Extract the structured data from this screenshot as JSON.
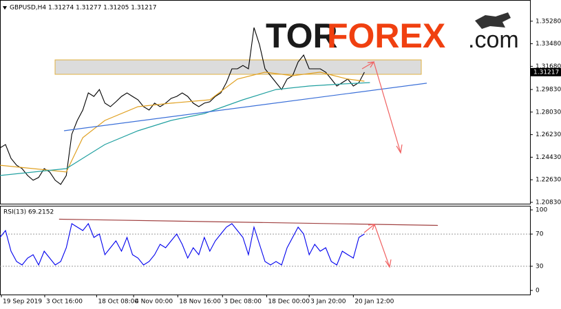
{
  "logo": {
    "part1": "TOR",
    "part2": "FOREX",
    "part3": ".com"
  },
  "chart_data": [
    {
      "type": "line",
      "title": "GBPUSD,H4  1.31274 1.31277 1.31205 1.31217",
      "xlim": [
        0,
        96
      ],
      "ylim": [
        1.2072,
        1.3686
      ],
      "yticks": [
        {
          "value": 1.3528,
          "label": "1.35280"
        },
        {
          "value": 1.3348,
          "label": "1.33480"
        },
        {
          "value": 1.3168,
          "label": "1.31680"
        },
        {
          "value": 1.2983,
          "label": "1.29830"
        },
        {
          "value": 1.2803,
          "label": "1.28030"
        },
        {
          "value": 1.2623,
          "label": "1.26230"
        },
        {
          "value": 1.2443,
          "label": "1.24430"
        },
        {
          "value": 1.2263,
          "label": "1.22630"
        },
        {
          "value": 1.2083,
          "label": "1.20830"
        }
      ],
      "last_value": 1.31217,
      "series": [
        {
          "color": "#000000",
          "x": [
            0,
            1,
            2,
            3,
            4,
            5,
            6,
            7,
            8,
            9,
            10,
            11,
            12,
            13,
            14,
            15,
            16,
            17,
            18,
            19,
            20,
            21,
            22,
            23,
            24,
            25,
            26,
            27,
            28,
            29,
            30,
            31,
            32,
            33,
            34,
            35,
            36,
            37,
            38,
            39,
            40,
            41,
            42,
            43,
            44,
            45,
            46,
            47,
            48,
            49,
            50,
            51,
            52,
            53,
            54,
            55,
            56,
            57,
            58,
            59,
            60,
            61,
            62,
            63,
            64,
            65,
            66
          ],
          "values": [
            1.2517,
            1.2544,
            1.2434,
            1.2379,
            1.2352,
            1.2297,
            1.2259,
            1.2281,
            1.2352,
            1.2325,
            1.2259,
            1.2226,
            1.2297,
            1.2626,
            1.2736,
            1.2819,
            1.2956,
            1.2928,
            1.2983,
            1.2874,
            1.2846,
            1.2885,
            1.2928,
            1.2956,
            1.2928,
            1.2901,
            1.2846,
            1.2819,
            1.2874,
            1.2846,
            1.2874,
            1.2912,
            1.2928,
            1.2956,
            1.2928,
            1.2874,
            1.2846,
            1.2874,
            1.2885,
            1.2928,
            1.2956,
            1.3038,
            1.3148,
            1.3148,
            1.3175,
            1.3148,
            1.3477,
            1.334,
            1.3148,
            1.3093,
            1.3038,
            1.2983,
            1.3066,
            1.3093,
            1.3203,
            1.3258,
            1.3148,
            1.3148,
            1.3148,
            1.3121,
            1.3066,
            1.3011,
            1.3038,
            1.3066,
            1.3011,
            1.3038,
            1.3121
          ]
        },
        {
          "color": "#e0a020",
          "x": [
            0,
            12,
            15,
            19,
            25,
            31,
            38,
            43,
            48,
            53,
            58,
            63,
            66
          ],
          "values": [
            1.2379,
            1.2325,
            1.2599,
            1.2736,
            1.2846,
            1.2874,
            1.2901,
            1.3066,
            1.3121,
            1.3093,
            1.3121,
            1.3066,
            1.3049
          ]
        },
        {
          "color": "#20a0a0",
          "x": [
            0,
            12,
            19,
            25,
            31,
            37,
            44,
            50,
            56,
            62,
            67
          ],
          "values": [
            1.2297,
            1.2352,
            1.2544,
            1.2654,
            1.2736,
            1.2791,
            1.2901,
            1.2983,
            1.3011,
            1.3027,
            1.3038
          ]
        },
        {
          "color": "#3a6fd8",
          "x": [
            11.6,
            77.3
          ],
          "values": [
            1.2654,
            1.3033
          ]
        }
      ]
    },
    {
      "type": "line",
      "title": "RSI(13) 69.2152",
      "xlim": [
        0,
        96
      ],
      "ylim": [
        0,
        100
      ],
      "yticks": [
        100,
        70,
        30,
        0
      ],
      "dashed_levels": [
        70,
        30
      ],
      "xticks": [
        {
          "value": 0.25,
          "label": "19 Sep 2019"
        },
        {
          "value": 8.1,
          "label": "3 Oct 16:00"
        },
        {
          "value": 17.5,
          "label": "18 Oct 08:00"
        },
        {
          "value": 24.2,
          "label": "4 Nov 00:00"
        },
        {
          "value": 32.2,
          "label": "18 Nov 16:00"
        },
        {
          "value": 40.3,
          "label": "3 Dec 08:00"
        },
        {
          "value": 48.3,
          "label": "18 Dec 00:00"
        },
        {
          "value": 56,
          "label": "3 Jan 20:00"
        },
        {
          "value": 64,
          "label": "20 Jan 12:00"
        }
      ],
      "series": [
        {
          "color": "#0000ee",
          "x": [
            0,
            1,
            2,
            3,
            4,
            5,
            6,
            7,
            8,
            9,
            10,
            11,
            12,
            13,
            14,
            15,
            16,
            17,
            18,
            19,
            20,
            21,
            22,
            23,
            24,
            25,
            26,
            27,
            28,
            29,
            30,
            31,
            32,
            33,
            34,
            35,
            36,
            37,
            38,
            39,
            40,
            41,
            42,
            43,
            44,
            45,
            46,
            47,
            48,
            49,
            50,
            51,
            52,
            53,
            54,
            55,
            56,
            57,
            58,
            59,
            60,
            61,
            62,
            63,
            64,
            65,
            66
          ],
          "values": [
            65.8,
            74.4,
            48.7,
            35.9,
            31.6,
            40.2,
            44.4,
            31.6,
            48.7,
            40.2,
            31.6,
            35.9,
            53.0,
            82.9,
            78.6,
            74.4,
            82.9,
            65.8,
            70.1,
            44.4,
            53.0,
            61.5,
            48.7,
            65.8,
            44.4,
            40.2,
            31.6,
            35.9,
            44.4,
            57.3,
            53.0,
            61.5,
            70.1,
            57.3,
            40.2,
            53.0,
            44.4,
            65.8,
            48.7,
            61.5,
            70.1,
            78.6,
            82.9,
            74.4,
            65.8,
            44.4,
            78.6,
            57.3,
            35.9,
            31.6,
            35.9,
            31.6,
            53.0,
            65.8,
            78.6,
            70.1,
            44.4,
            57.3,
            48.7,
            53.0,
            35.9,
            31.6,
            48.7,
            44.4,
            40.2,
            65.8,
            70.1
          ]
        },
        {
          "color": "#a04040",
          "x": [
            10.7,
            79.3
          ],
          "values": [
            88.5,
            80.8
          ]
        }
      ]
    }
  ]
}
